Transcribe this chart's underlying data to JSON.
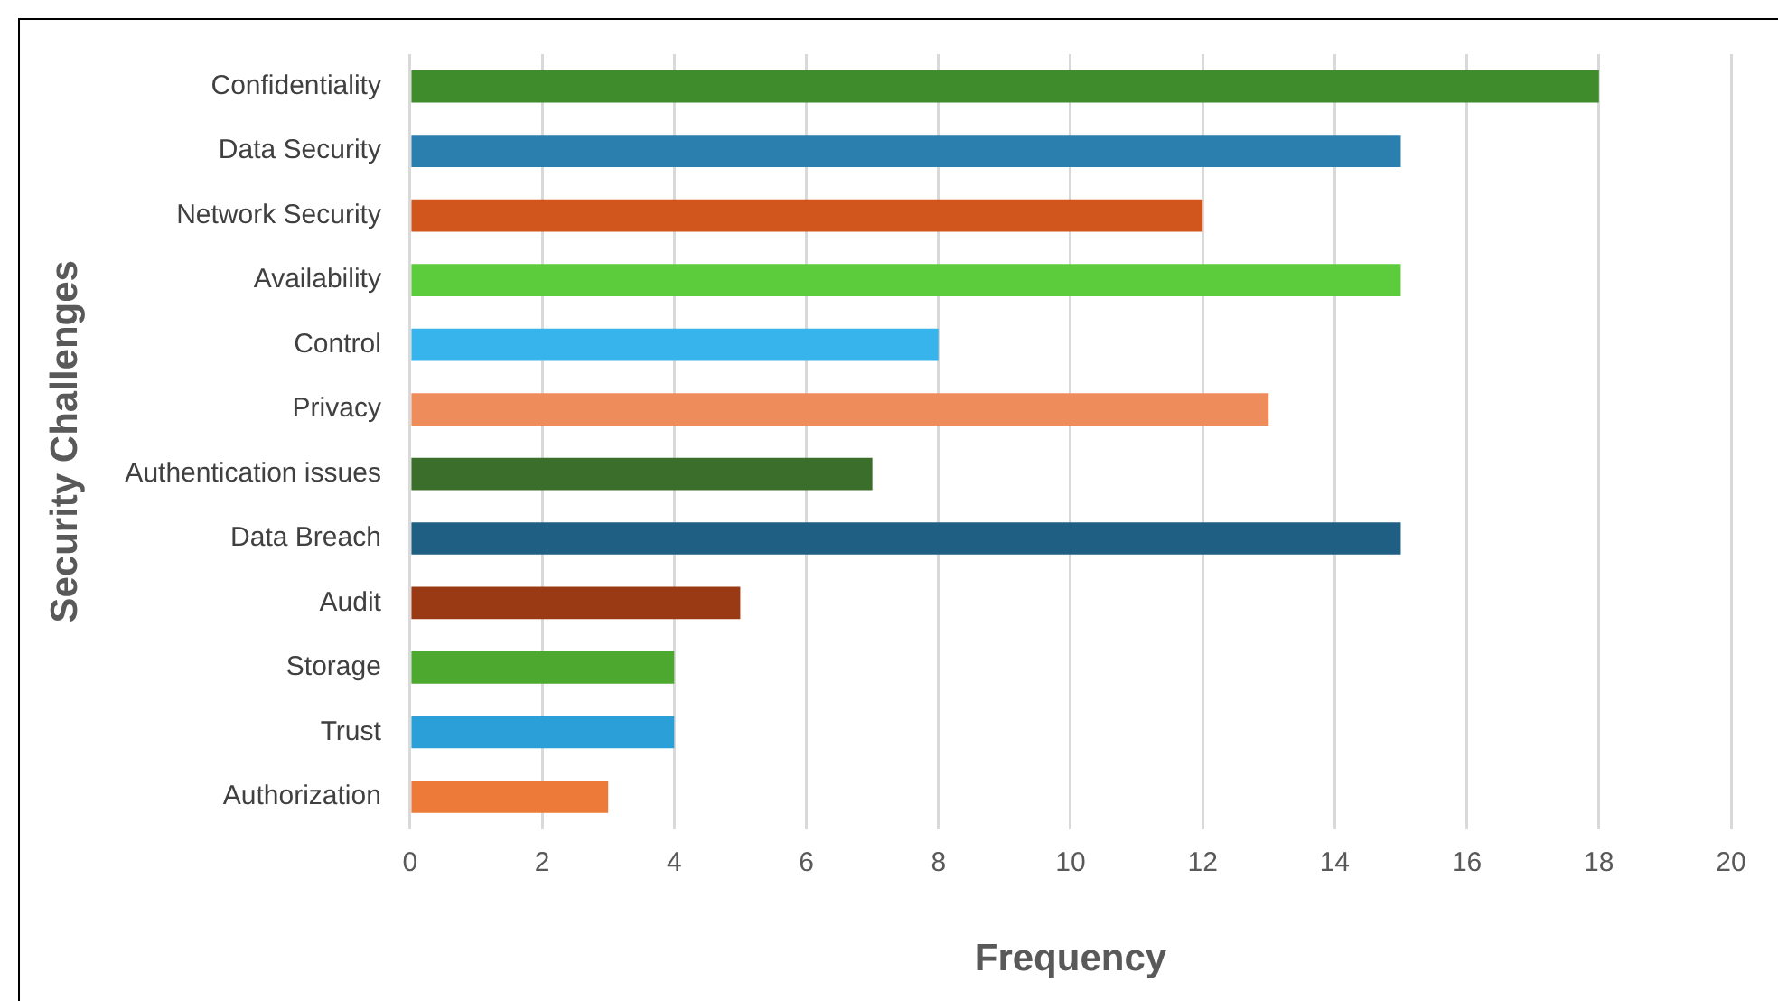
{
  "chart_data": {
    "type": "bar",
    "orientation": "horizontal",
    "xlabel": "Frequency",
    "ylabel": "Security Challenges",
    "categories": [
      "Confidentiality",
      "Data Security",
      "Network Security",
      "Availability",
      "Control",
      "Privacy",
      "Authentication issues",
      "Data Breach",
      "Audit",
      "Storage",
      "Trust",
      "Authorization"
    ],
    "values": [
      18,
      15,
      12,
      15,
      8,
      13,
      7,
      15,
      5,
      4,
      4,
      3
    ],
    "colors": [
      "#3e8c2c",
      "#2a7fae",
      "#d0561e",
      "#5ccc3c",
      "#38b4ec",
      "#ef8c5c",
      "#3a6e2a",
      "#1f5f84",
      "#9a3a14",
      "#4ca82e",
      "#2a9fd8",
      "#ee7a3a"
    ],
    "xlim": [
      0,
      20
    ],
    "xticks": [
      0,
      2,
      4,
      6,
      8,
      10,
      12,
      14,
      16,
      18,
      20
    ],
    "grid": "x",
    "legend": false
  }
}
